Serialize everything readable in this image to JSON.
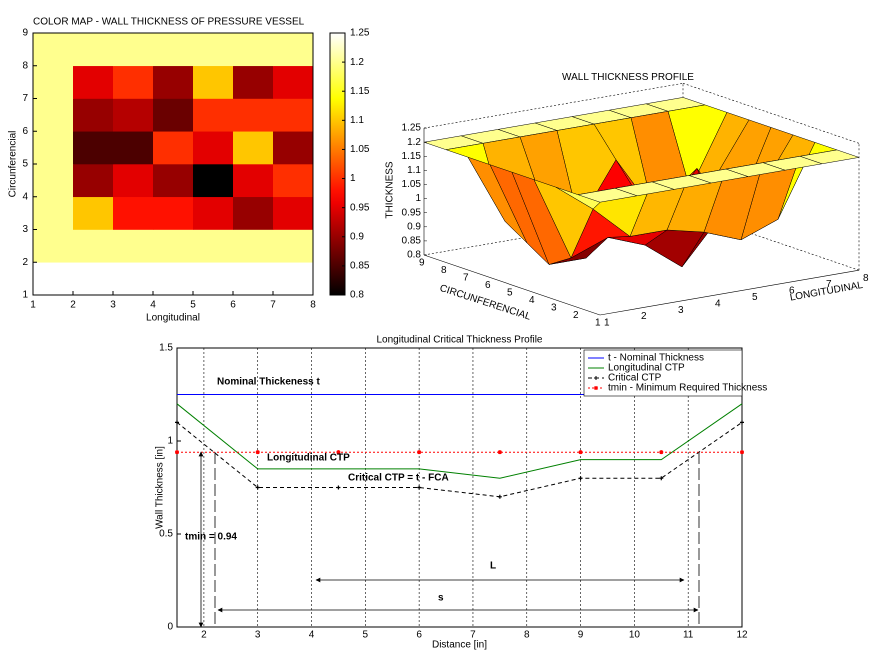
{
  "chart_data": [
    {
      "type": "heatmap",
      "title": "COLOR MAP - WALL THICKNESS OF PRESSURE VESSEL",
      "xlabel": "Longitudinal",
      "ylabel": "Circunferencial",
      "xlim": [
        1,
        8
      ],
      "ylim": [
        1,
        9
      ],
      "xticks": [
        1,
        2,
        3,
        4,
        5,
        6,
        7,
        8
      ],
      "yticks": [
        1,
        2,
        3,
        4,
        5,
        6,
        7,
        8,
        9
      ],
      "colormap": "hot",
      "clim": [
        0.8,
        1.25
      ],
      "cticks": [
        0.8,
        0.85,
        0.9,
        0.95,
        1,
        1.05,
        1.1,
        1.15,
        1.2,
        1.25
      ],
      "z": [
        [
          1.25,
          1.25,
          1.25,
          1.25,
          1.25,
          1.25,
          1.25
        ],
        [
          1.2,
          1.2,
          1.2,
          1.2,
          1.2,
          1.2,
          1.2
        ],
        [
          1.2,
          1.1,
          0.98,
          0.98,
          0.95,
          0.9,
          0.95
        ],
        [
          1.2,
          0.9,
          0.95,
          0.9,
          0.8,
          0.95,
          1.0
        ],
        [
          1.2,
          0.85,
          0.85,
          1.0,
          0.95,
          1.1,
          0.9
        ],
        [
          1.2,
          0.9,
          0.92,
          0.87,
          1.0,
          1.0,
          1.0
        ],
        [
          1.2,
          0.95,
          1.0,
          0.9,
          1.1,
          0.9,
          0.95
        ],
        [
          1.2,
          1.2,
          1.2,
          1.2,
          1.2,
          1.2,
          1.2
        ]
      ]
    },
    {
      "type": "surface3d",
      "title": "WALL THICKNESS PROFILE",
      "xlabel": "LONGITUDINAL",
      "ylabel": "CIRCUNFERENCIAL",
      "zlabel": "THICKNESS",
      "xlim": [
        1,
        8
      ],
      "ylim": [
        1,
        9
      ],
      "zlim": [
        0.8,
        1.25
      ],
      "xticks": [
        1,
        2,
        3,
        4,
        5,
        6,
        7,
        8
      ],
      "yticks": [
        1,
        2,
        3,
        4,
        5,
        6,
        7,
        8,
        9
      ],
      "zticks": [
        0.8,
        0.85,
        0.9,
        0.95,
        1,
        1.05,
        1.1,
        1.15,
        1.2,
        1.25
      ],
      "colormap": "hot",
      "clim": [
        0.8,
        1.25
      ],
      "z": [
        [
          1.2,
          1.2,
          1.2,
          1.2,
          1.2,
          1.2,
          1.2,
          1.2
        ],
        [
          1.2,
          1.2,
          1.2,
          1.2,
          1.2,
          1.2,
          1.2,
          1.2
        ],
        [
          1.2,
          1.1,
          0.98,
          0.98,
          0.95,
          0.9,
          0.95,
          1.2
        ],
        [
          1.2,
          0.9,
          0.95,
          0.9,
          0.8,
          0.95,
          1.0,
          1.2
        ],
        [
          1.2,
          0.85,
          0.85,
          1.0,
          0.95,
          1.1,
          0.9,
          1.2
        ],
        [
          1.2,
          0.9,
          0.92,
          0.87,
          1.0,
          1.0,
          1.0,
          1.2
        ],
        [
          1.2,
          0.95,
          1.0,
          0.9,
          1.1,
          0.9,
          0.95,
          1.2
        ],
        [
          1.2,
          1.2,
          1.2,
          1.2,
          1.2,
          1.2,
          1.2,
          1.2
        ],
        [
          1.2,
          1.2,
          1.2,
          1.2,
          1.2,
          1.2,
          1.2,
          1.2
        ]
      ]
    },
    {
      "type": "line",
      "title": "Longitudinal Critical Thickness Profile",
      "xlabel": "Distance [in]",
      "ylabel": "Wall Thickness [in]",
      "xlim": [
        1.5,
        12
      ],
      "ylim": [
        0,
        1.5
      ],
      "xticks": [
        2,
        3,
        4,
        5,
        6,
        7,
        8,
        9,
        10,
        11,
        12
      ],
      "yticks": [
        0,
        0.5,
        1,
        1.5
      ],
      "xgrid": true,
      "legend": "upper right",
      "series": [
        {
          "name": "t - Nominal Thickness",
          "color": "#0000ff",
          "dash": "solid",
          "marker": "none",
          "x": [
            1.5,
            12
          ],
          "values": [
            1.25,
            1.25
          ]
        },
        {
          "name": "Longitudinal CTP",
          "color": "#008000",
          "dash": "solid",
          "marker": "none",
          "x": [
            1.5,
            3,
            4.5,
            6,
            7.5,
            9,
            10.5,
            12
          ],
          "values": [
            1.2,
            0.85,
            0.85,
            0.85,
            0.8,
            0.9,
            0.9,
            1.2
          ]
        },
        {
          "name": "Critical CTP",
          "color": "#000000",
          "dash": "dashed",
          "marker": "plus",
          "x": [
            1.5,
            3,
            4.5,
            6,
            7.5,
            9,
            10.5,
            12
          ],
          "values": [
            1.1,
            0.75,
            0.75,
            0.75,
            0.7,
            0.8,
            0.8,
            1.1
          ]
        },
        {
          "name": "tmin - Minimum Required Thickness",
          "color": "#ff0000",
          "dash": "dotted",
          "marker": "star",
          "x": [
            1.5,
            3,
            4.5,
            6,
            7.5,
            9,
            10.5,
            12
          ],
          "values": [
            0.94,
            0.94,
            0.94,
            0.94,
            0.94,
            0.94,
            0.94,
            0.94
          ]
        }
      ],
      "annotations": [
        "Nominal Thickeness t",
        "Longitudinal CTP",
        "Critical CTP = t - FCA",
        "tmin = 0.94",
        "L",
        "s"
      ]
    }
  ]
}
